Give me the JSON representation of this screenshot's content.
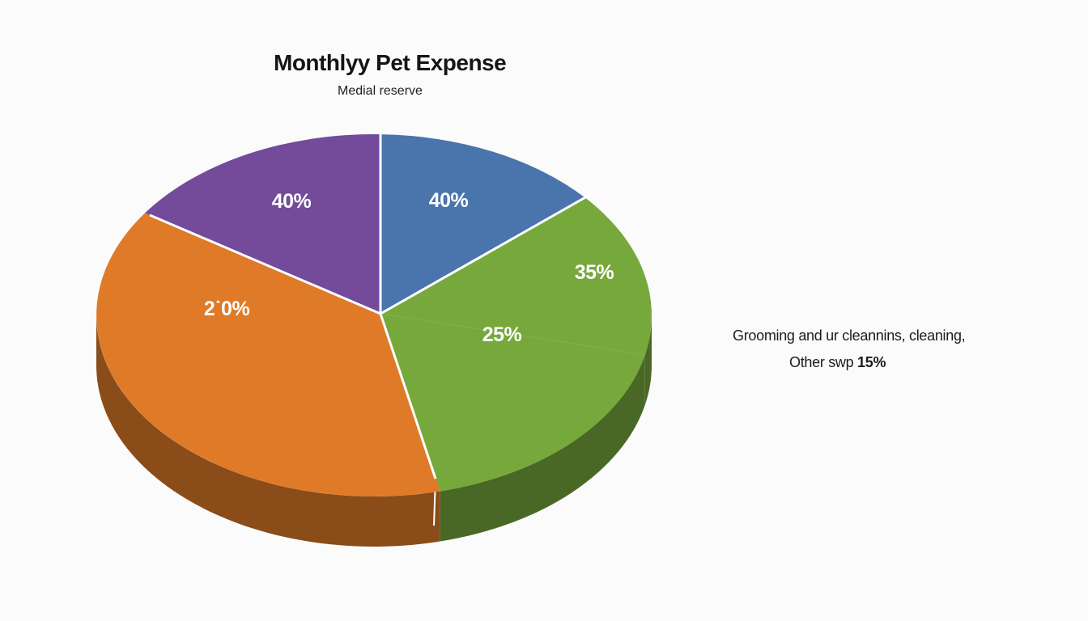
{
  "chart_data": {
    "type": "pie",
    "title": "Monthlyy Pet Expense",
    "subtitle": "Medial reserve",
    "slices": [
      {
        "label": "40%",
        "value": 40,
        "color": "#4a74ac"
      },
      {
        "label": "35%",
        "value": 35,
        "color": "#77a83c"
      },
      {
        "label": "25%",
        "value": 25,
        "color": "#77a83c"
      },
      {
        "label": "2˙0%",
        "value": 20,
        "color": "#df7a28"
      },
      {
        "label": "40%",
        "value": 40,
        "color": "#734b9a"
      }
    ],
    "annotations": [
      "Grooming and ur cleannins, cleaning,",
      {
        "text": "Other swp",
        "value": "15%"
      }
    ],
    "style": "3d",
    "legend": "none"
  },
  "colors": {
    "background": "#fbfbfb",
    "blue": "#4a74ac",
    "green": "#77a83c",
    "orange": "#df7a28",
    "purple": "#734b9a"
  }
}
